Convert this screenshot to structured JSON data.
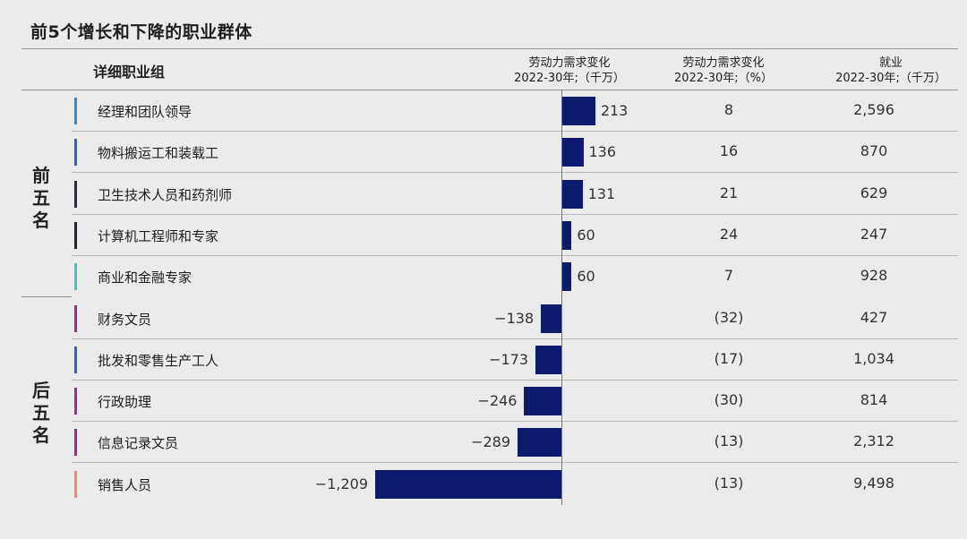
{
  "title": "前5个增长和下降的职业群体",
  "header": {
    "occupation": "详细职业组",
    "change_abs_1": "劳动力需求变化",
    "change_abs_2": "2022-30年;（千万）",
    "change_pct_1": "劳动力需求变化",
    "change_pct_2": "2022-30年;（%）",
    "employment_1": "就业",
    "employment_2": "2022-30年;（千万）"
  },
  "groups": {
    "top": "前五名",
    "bottom": "后五名"
  },
  "chart_data": {
    "type": "bar",
    "title": "前5个增长和下降的职业群体",
    "categories": [
      "经理和团队领导",
      "物料搬运工和装载工",
      "卫生技术人员和药剂师",
      "计算机工程师和专家",
      "商业和金融专家",
      "财务文员",
      "批发和零售生产工人",
      "行政助理",
      "信息记录文员",
      "销售人员"
    ],
    "values": [
      213,
      136,
      131,
      60,
      60,
      -138,
      -173,
      -246,
      -289,
      -1209
    ],
    "value_labels": [
      "213",
      "136",
      "131",
      "60",
      "60",
      "−138",
      "−173",
      "−246",
      "−289",
      "−1,209"
    ],
    "pct_change": [
      "8",
      "16",
      "21",
      "24",
      "7",
      "(32)",
      "(17)",
      "(30)",
      "(13)",
      "(13)"
    ],
    "employment": [
      "2,596",
      "870",
      "629",
      "247",
      "928",
      "427",
      "1,034",
      "814",
      "2,312",
      "9,498"
    ],
    "accent_colors": [
      "#2a8fd8",
      "#3a5bd8",
      "#2b2b46",
      "#1e2438",
      "#3ec7c0",
      "#a12a8f",
      "#3a5bd8",
      "#a12a8f",
      "#a12a8f",
      "#f08a6a"
    ],
    "bar_color": "#0d1a6e",
    "xlim": [
      -1209,
      213
    ],
    "grid": false
  }
}
